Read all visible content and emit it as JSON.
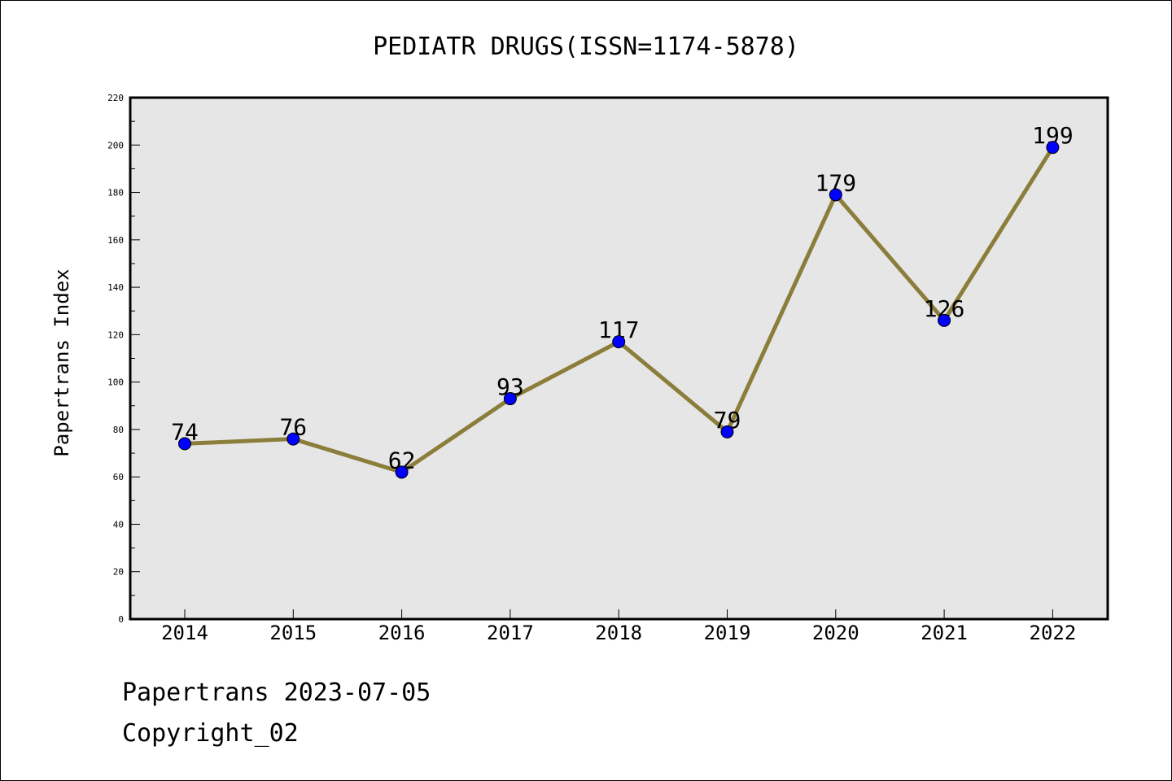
{
  "chart_data": {
    "type": "line",
    "title": "PEDIATR DRUGS(ISSN=1174-5878)",
    "xlabel": "",
    "ylabel": "Papertrans Index",
    "categories": [
      "2014",
      "2015",
      "2016",
      "2017",
      "2018",
      "2019",
      "2020",
      "2021",
      "2022"
    ],
    "series": [
      {
        "values": [
          74,
          76,
          62,
          93,
          117,
          79,
          179,
          126,
          199
        ]
      }
    ],
    "ylim": [
      0,
      220
    ],
    "yticks": [
      0,
      20,
      40,
      60,
      80,
      100,
      120,
      140,
      160,
      180,
      200,
      220
    ],
    "grid": false,
    "colors": {
      "line": "#8b7d3a",
      "marker": "#0000ff",
      "plot_bg": "#e6e6e6"
    },
    "data_labels": [
      "74",
      "76",
      "62",
      "93",
      "117",
      "79",
      "179",
      "126",
      "199"
    ]
  },
  "footer": {
    "line1": "Papertrans 2023-07-05",
    "line2": "Copyright_02"
  }
}
